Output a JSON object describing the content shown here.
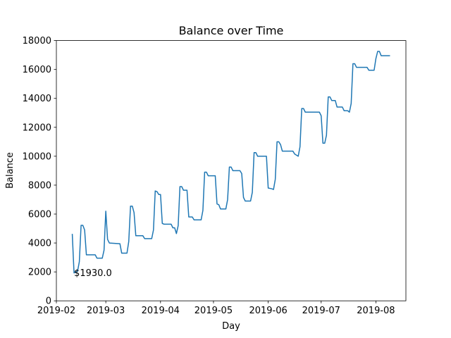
{
  "chart_data": {
    "type": "line",
    "title": "Balance over Time",
    "xlabel": "Day",
    "ylabel": "Balance",
    "x": [
      9,
      10,
      12,
      13,
      14,
      15,
      16,
      17,
      22,
      23,
      26,
      27,
      28,
      29,
      30,
      36,
      37,
      40,
      41,
      42,
      43,
      44,
      45,
      49,
      50,
      54,
      55,
      56,
      57,
      58,
      59,
      60,
      61,
      65,
      66,
      67,
      68,
      69,
      70,
      71,
      72,
      74,
      75,
      77,
      78,
      82,
      83,
      84,
      85,
      86,
      90,
      91,
      92,
      93,
      96,
      97,
      98,
      99,
      100,
      104,
      105,
      106,
      107,
      110,
      111,
      112,
      113,
      114,
      119,
      120,
      122,
      123,
      124,
      125,
      126,
      127,
      128,
      134,
      135,
      137,
      138,
      139,
      140,
      141,
      149,
      150,
      151,
      152,
      153,
      154,
      155,
      156,
      158,
      159,
      162,
      163,
      165,
      166,
      167,
      168,
      169,
      170,
      176,
      177,
      180,
      181,
      182,
      183,
      184,
      189
    ],
    "series": [
      {
        "name": "Balance",
        "color": "#1f77b4",
        "values": [
          4630,
          1930,
          2050,
          2700,
          5220,
          5220,
          4900,
          3180,
          3180,
          2950,
          2950,
          3500,
          6200,
          4250,
          4000,
          3950,
          3300,
          3300,
          4100,
          6550,
          6550,
          6100,
          4500,
          4500,
          4300,
          4300,
          4900,
          7600,
          7550,
          7350,
          7350,
          5350,
          5300,
          5300,
          5050,
          5050,
          4650,
          5200,
          7900,
          7900,
          7650,
          7650,
          5800,
          5800,
          5600,
          5600,
          6250,
          8900,
          8900,
          8650,
          8650,
          6700,
          6650,
          6350,
          6350,
          7000,
          9250,
          9250,
          9000,
          9000,
          8800,
          7150,
          6900,
          6900,
          7500,
          10250,
          10250,
          10000,
          10000,
          7800,
          7750,
          7700,
          8400,
          11000,
          11000,
          10800,
          10350,
          10350,
          10150,
          10000,
          10650,
          13300,
          13300,
          13050,
          13050,
          12800,
          10900,
          10900,
          11450,
          14100,
          14100,
          13850,
          13850,
          13400,
          13400,
          13150,
          13150,
          13050,
          13650,
          16400,
          16400,
          16150,
          16150,
          15950,
          15950,
          16750,
          17250,
          17250,
          16950,
          16950
        ]
      }
    ],
    "annotation": "$1930.0",
    "xlim": [
      0,
      198
    ],
    "xticks": [
      {
        "value": 0,
        "label": "2019-02"
      },
      {
        "value": 28,
        "label": "2019-03"
      },
      {
        "value": 59,
        "label": "2019-04"
      },
      {
        "value": 89,
        "label": "2019-05"
      },
      {
        "value": 120,
        "label": "2019-06"
      },
      {
        "value": 150,
        "label": "2019-07"
      },
      {
        "value": 181,
        "label": "2019-08"
      }
    ],
    "ylim": [
      0,
      18000
    ],
    "yticks": [
      0,
      2000,
      4000,
      6000,
      8000,
      10000,
      12000,
      14000,
      16000,
      18000
    ]
  }
}
